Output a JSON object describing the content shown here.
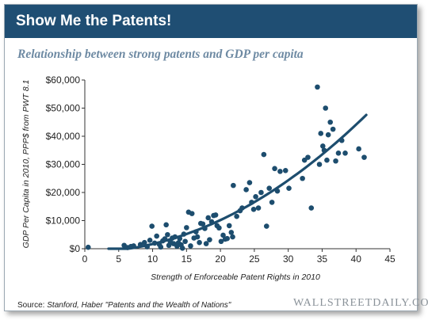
{
  "header": {
    "title": "Show Me the Patents!"
  },
  "subtitle": "Relationship between strong patents and GDP per capita",
  "source": {
    "label": "Source:",
    "text": "Stanford, Haber \"Patents and the Wealth of Nations\""
  },
  "logo": "WALLSTREETDAILY.COM",
  "colors": {
    "header": "#1f4e73",
    "points": "#1d4d6e",
    "trend": "#1d4d6e",
    "subtitle": "#6e8aa3"
  },
  "chart_data": {
    "type": "scatter",
    "title": "Relationship between strong patents and GDP per capita",
    "xlabel": "Strength of Enforceable Patent Rights in 2010",
    "ylabel": "GDP Per Capita in 2010, PPP$ from PWT 8.1",
    "xlim": [
      0,
      45
    ],
    "ylim": [
      0,
      60000
    ],
    "x_ticks": [
      0,
      5,
      10,
      15,
      20,
      25,
      30,
      35,
      40,
      45
    ],
    "y_ticks": [
      0,
      10000,
      20000,
      30000,
      40000,
      50000,
      60000
    ],
    "y_tick_labels": [
      "$0",
      "$10,000",
      "$20,000",
      "$30,000",
      "$40,000",
      "$50,000",
      "$60,000"
    ],
    "grid": false,
    "legend": "none",
    "points": [
      [
        0.5,
        500
      ],
      [
        5.8,
        1200
      ],
      [
        6.3,
        400
      ],
      [
        6.8,
        800
      ],
      [
        7.2,
        1000
      ],
      [
        8.2,
        1500
      ],
      [
        8.8,
        2200
      ],
      [
        9.2,
        700
      ],
      [
        9.6,
        3000
      ],
      [
        9.9,
        8000
      ],
      [
        10.3,
        2000
      ],
      [
        10.6,
        4500
      ],
      [
        11.0,
        1500
      ],
      [
        11.2,
        600
      ],
      [
        11.5,
        2800
      ],
      [
        11.8,
        3500
      ],
      [
        12.0,
        8500
      ],
      [
        12.2,
        5000
      ],
      [
        12.4,
        1200
      ],
      [
        12.6,
        2500
      ],
      [
        12.9,
        3800
      ],
      [
        13.1,
        1800
      ],
      [
        13.3,
        4200
      ],
      [
        13.6,
        900
      ],
      [
        13.8,
        2100
      ],
      [
        14.0,
        3600
      ],
      [
        14.2,
        1400
      ],
      [
        14.4,
        200
      ],
      [
        14.6,
        5200
      ],
      [
        14.8,
        2600
      ],
      [
        15.0,
        7500
      ],
      [
        15.3,
        13000
      ],
      [
        15.6,
        1000
      ],
      [
        15.8,
        12500
      ],
      [
        16.1,
        3800
      ],
      [
        16.4,
        6000
      ],
      [
        16.6,
        4200
      ],
      [
        16.9,
        2200
      ],
      [
        17.1,
        9000
      ],
      [
        17.4,
        8800
      ],
      [
        17.7,
        7200
      ],
      [
        17.9,
        1800
      ],
      [
        18.2,
        11000
      ],
      [
        18.4,
        3200
      ],
      [
        18.7,
        9600
      ],
      [
        19.0,
        11800
      ],
      [
        19.3,
        12000
      ],
      [
        19.5,
        8200
      ],
      [
        19.8,
        7400
      ],
      [
        20.1,
        2600
      ],
      [
        20.4,
        4800
      ],
      [
        20.7,
        3400
      ],
      [
        21.0,
        3600
      ],
      [
        21.3,
        8200
      ],
      [
        21.6,
        5800
      ],
      [
        21.8,
        4200
      ],
      [
        21.9,
        22500
      ],
      [
        22.4,
        11500
      ],
      [
        22.9,
        13500
      ],
      [
        23.2,
        14500
      ],
      [
        23.8,
        21000
      ],
      [
        24.3,
        23500
      ],
      [
        24.6,
        16500
      ],
      [
        24.9,
        14000
      ],
      [
        25.2,
        18500
      ],
      [
        25.6,
        14500
      ],
      [
        26.0,
        20000
      ],
      [
        26.4,
        33500
      ],
      [
        26.8,
        8000
      ],
      [
        27.2,
        21500
      ],
      [
        27.6,
        16500
      ],
      [
        28.0,
        28500
      ],
      [
        28.4,
        20500
      ],
      [
        28.8,
        27500
      ],
      [
        29.6,
        27800
      ],
      [
        30.1,
        21500
      ],
      [
        32.1,
        25000
      ],
      [
        32.4,
        31500
      ],
      [
        32.9,
        32500
      ],
      [
        33.4,
        14500
      ],
      [
        34.3,
        57500
      ],
      [
        34.6,
        30000
      ],
      [
        34.8,
        41000
      ],
      [
        35.1,
        36500
      ],
      [
        35.3,
        35000
      ],
      [
        35.5,
        50000
      ],
      [
        35.7,
        31500
      ],
      [
        35.9,
        40500
      ],
      [
        36.2,
        45000
      ],
      [
        36.6,
        42500
      ],
      [
        37.0,
        31200
      ],
      [
        37.4,
        34000
      ],
      [
        37.9,
        38500
      ],
      [
        38.4,
        34000
      ],
      [
        40.4,
        35500
      ],
      [
        41.2,
        32500
      ]
    ],
    "trendline": {
      "type": "polynomial",
      "x_range": [
        3.5,
        41.5
      ]
    }
  }
}
